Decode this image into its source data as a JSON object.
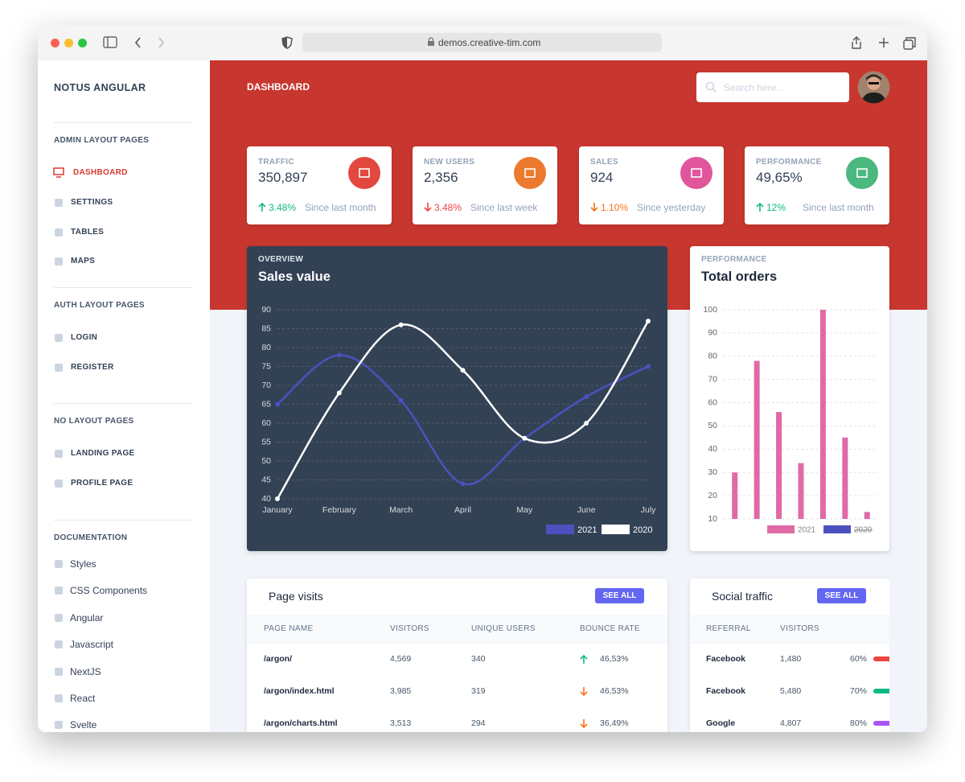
{
  "browser": {
    "url": "demos.creative-tim.com"
  },
  "sidebar": {
    "brand": "NOTUS ANGULAR",
    "sections": [
      {
        "heading": "ADMIN LAYOUT PAGES",
        "items": [
          {
            "label": "DASHBOARD",
            "active": true
          },
          {
            "label": "SETTINGS"
          },
          {
            "label": "TABLES"
          },
          {
            "label": "MAPS"
          }
        ]
      },
      {
        "heading": "AUTH LAYOUT PAGES",
        "items": [
          {
            "label": "LOGIN"
          },
          {
            "label": "REGISTER"
          }
        ]
      },
      {
        "heading": "NO LAYOUT PAGES",
        "items": [
          {
            "label": "LANDING PAGE"
          },
          {
            "label": "PROFILE PAGE"
          }
        ]
      },
      {
        "heading": "DOCUMENTATION",
        "items": [
          {
            "label": "Styles"
          },
          {
            "label": "CSS Components"
          },
          {
            "label": "Angular"
          },
          {
            "label": "Javascript"
          },
          {
            "label": "NextJS"
          },
          {
            "label": "React"
          },
          {
            "label": "Svelte"
          }
        ]
      }
    ]
  },
  "header": {
    "title": "DASHBOARD",
    "search_placeholder": "Search here..."
  },
  "stats": [
    {
      "label": "TRAFFIC",
      "value": "350,897",
      "change": "3.48%",
      "trend": "up",
      "since": "Since last month",
      "icon_color": "#e2483f",
      "change_color": "#10b981"
    },
    {
      "label": "NEW USERS",
      "value": "2,356",
      "change": "3.48%",
      "trend": "down",
      "since": "Since last week",
      "icon_color": "#ec7a2e",
      "change_color": "#ef4444"
    },
    {
      "label": "SALES",
      "value": "924",
      "change": "1.10%",
      "trend": "down",
      "since": "Since yesterday",
      "icon_color": "#e0559c",
      "change_color": "#f97316"
    },
    {
      "label": "PERFORMANCE",
      "value": "49,65%",
      "change": "12%",
      "trend": "up",
      "since": "Since last month",
      "icon_color": "#4bb87f",
      "change_color": "#10b981"
    }
  ],
  "chart_data": [
    {
      "type": "line",
      "subtitle": "OVERVIEW",
      "title": "Sales value",
      "categories": [
        "January",
        "February",
        "March",
        "April",
        "May",
        "June",
        "July"
      ],
      "series": [
        {
          "name": "2021",
          "color": "#4c51bf",
          "values": [
            65,
            78,
            66,
            44,
            56,
            67,
            75
          ]
        },
        {
          "name": "2020",
          "color": "#ffffff",
          "values": [
            40,
            68,
            86,
            74,
            56,
            60,
            87
          ]
        }
      ],
      "ylim": [
        40,
        90
      ],
      "yticks": [
        40,
        45,
        50,
        55,
        60,
        65,
        70,
        75,
        80,
        85,
        90
      ],
      "grid": true,
      "legend": "bottom-right"
    },
    {
      "type": "bar",
      "subtitle": "PERFORMANCE",
      "title": "Total orders",
      "categories": [
        null,
        null,
        null,
        null,
        null,
        null,
        null
      ],
      "series": [
        {
          "name": "2021",
          "color": "#e06aa6",
          "values": [
            30,
            78,
            56,
            34,
            100,
            45,
            13
          ]
        }
      ],
      "hidden_series": [
        {
          "name": "2020",
          "color": "#4c51bf"
        }
      ],
      "ylim": [
        10,
        100
      ],
      "yticks": [
        10,
        20,
        30,
        40,
        50,
        60,
        70,
        80,
        90,
        100
      ],
      "grid": true,
      "legend": "bottom-right"
    }
  ],
  "page_visits": {
    "title": "Page visits",
    "button": "SEE ALL",
    "columns": [
      "PAGE NAME",
      "VISITORS",
      "UNIQUE USERS",
      "BOUNCE RATE"
    ],
    "rows": [
      {
        "page": "/argon/",
        "visitors": "4,569",
        "unique": "340",
        "bounce": "46,53%",
        "trend": "up",
        "trend_color": "#10b981"
      },
      {
        "page": "/argon/index.html",
        "visitors": "3,985",
        "unique": "319",
        "bounce": "46,53%",
        "trend": "down",
        "trend_color": "#f97316"
      },
      {
        "page": "/argon/charts.html",
        "visitors": "3,513",
        "unique": "294",
        "bounce": "36,49%",
        "trend": "down",
        "trend_color": "#f97316"
      }
    ]
  },
  "social_traffic": {
    "title": "Social traffic",
    "button": "SEE ALL",
    "columns": [
      "REFERRAL",
      "VISITORS"
    ],
    "rows": [
      {
        "referral": "Facebook",
        "visitors": "1,480",
        "percent": 60,
        "percent_label": "60%",
        "color": "#ef4444"
      },
      {
        "referral": "Facebook",
        "visitors": "5,480",
        "percent": 70,
        "percent_label": "70%",
        "color": "#10b981"
      },
      {
        "referral": "Google",
        "visitors": "4,807",
        "percent": 80,
        "percent_label": "80%",
        "color": "#a855f7"
      }
    ]
  }
}
